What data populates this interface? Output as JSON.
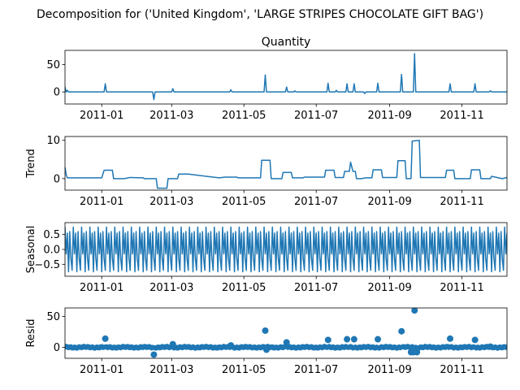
{
  "figure": {
    "suptitle": "Decomposition for ('United Kingdom', 'LARGE STRIPES CHOCOLATE GIFT BAG')"
  },
  "chart_data": [
    {
      "type": "line",
      "panel": "observed",
      "title": "Quantity",
      "ylabel": "",
      "ylim": [
        -22,
        76
      ],
      "yticks": [
        0,
        50
      ],
      "xlim": [
        "2010-12-01",
        "2011-12-09"
      ],
      "xticks": [
        "2011-01",
        "2011-03",
        "2011-05",
        "2011-07",
        "2011-09",
        "2011-11"
      ],
      "color": "#1f77b4",
      "baseline": 0,
      "spikes": [
        {
          "date": "2010-12-01",
          "value": 9
        },
        {
          "date": "2010-12-03",
          "value": 3
        },
        {
          "date": "2011-01-04",
          "value": 15
        },
        {
          "date": "2011-02-14",
          "value": -14
        },
        {
          "date": "2011-03-02",
          "value": 6
        },
        {
          "date": "2011-04-20",
          "value": 4
        },
        {
          "date": "2011-05-19",
          "value": 31
        },
        {
          "date": "2011-06-06",
          "value": 9
        },
        {
          "date": "2011-06-13",
          "value": 2
        },
        {
          "date": "2011-07-11",
          "value": 16
        },
        {
          "date": "2011-07-18",
          "value": 3
        },
        {
          "date": "2011-07-27",
          "value": 15
        },
        {
          "date": "2011-08-02",
          "value": 15
        },
        {
          "date": "2011-08-11",
          "value": -3
        },
        {
          "date": "2011-08-22",
          "value": 16
        },
        {
          "date": "2011-09-11",
          "value": 32
        },
        {
          "date": "2011-09-22",
          "value": 70
        },
        {
          "date": "2011-10-22",
          "value": 15
        },
        {
          "date": "2011-11-12",
          "value": 15
        },
        {
          "date": "2011-11-25",
          "value": 2
        }
      ]
    },
    {
      "type": "line",
      "panel": "trend",
      "title": "",
      "ylabel": "Trend",
      "ylim": [
        -3,
        11
      ],
      "yticks": [
        0,
        10
      ],
      "xlim": [
        "2010-12-01",
        "2011-12-09"
      ],
      "xticks": [
        "2011-01",
        "2011-03",
        "2011-05",
        "2011-07",
        "2011-09",
        "2011-11"
      ],
      "color": "#1f77b4",
      "x": [
        "2010-12-01",
        "2010-12-02",
        "2010-12-03",
        "2010-12-20",
        "2011-01-01",
        "2011-01-03",
        "2011-01-10",
        "2011-01-11",
        "2011-01-20",
        "2011-01-25",
        "2011-02-05",
        "2011-02-06",
        "2011-02-07",
        "2011-02-16",
        "2011-02-17",
        "2011-02-25",
        "2011-02-26",
        "2011-03-06",
        "2011-03-07",
        "2011-03-15",
        "2011-04-10",
        "2011-04-15",
        "2011-04-25",
        "2011-04-26",
        "2011-05-15",
        "2011-05-16",
        "2011-05-23",
        "2011-05-24",
        "2011-06-02",
        "2011-06-03",
        "2011-06-10",
        "2011-06-11",
        "2011-06-20",
        "2011-06-21",
        "2011-07-08",
        "2011-07-09",
        "2011-07-16",
        "2011-07-17",
        "2011-07-24",
        "2011-07-25",
        "2011-07-29",
        "2011-07-30",
        "2011-08-01",
        "2011-08-03",
        "2011-08-04",
        "2011-08-08",
        "2011-08-12",
        "2011-08-17",
        "2011-08-18",
        "2011-08-25",
        "2011-08-26",
        "2011-09-07",
        "2011-09-08",
        "2011-09-14",
        "2011-09-15",
        "2011-09-19",
        "2011-09-20",
        "2011-09-26",
        "2011-09-27",
        "2011-10-18",
        "2011-10-19",
        "2011-10-25",
        "2011-10-26",
        "2011-11-08",
        "2011-11-09",
        "2011-11-16",
        "2011-11-17",
        "2011-11-25",
        "2011-11-26",
        "2011-12-05",
        "2011-12-09"
      ],
      "values": [
        3,
        1,
        0.2,
        0.2,
        0.2,
        2.2,
        2.2,
        0,
        0,
        0.3,
        0.2,
        0,
        0,
        0,
        -2.5,
        -2.5,
        0,
        0,
        1.2,
        1.2,
        0.2,
        0.4,
        0.4,
        0.2,
        0.2,
        4.8,
        4.8,
        0,
        0,
        1.6,
        1.6,
        0.2,
        0.2,
        0.4,
        0.4,
        2.2,
        2.2,
        0.3,
        0.3,
        1.9,
        1.9,
        4.3,
        1.9,
        1.9,
        0,
        0,
        0.2,
        0.2,
        2.3,
        2.3,
        0.3,
        0.3,
        4.7,
        4.7,
        0,
        0,
        9.8,
        10,
        0.3,
        0.3,
        2.2,
        2.2,
        0,
        0,
        2.3,
        2.3,
        0,
        0,
        0.6,
        0,
        0.3
      ]
    },
    {
      "type": "line",
      "panel": "seasonal",
      "title": "",
      "ylabel": "Seasonal",
      "ylim": [
        -0.9,
        0.9
      ],
      "yticks": [
        -0.5,
        0.0,
        0.5
      ],
      "ytick_labels": [
        "−0.5",
        "0.0",
        "0.5"
      ],
      "xlim": [
        "2010-12-01",
        "2011-12-09"
      ],
      "xticks": [
        "2011-01",
        "2011-03",
        "2011-05",
        "2011-07",
        "2011-09",
        "2011-11"
      ],
      "color": "#1f77b4",
      "period_days": 7,
      "pattern": [
        0.75,
        -0.15,
        0.55,
        -0.75,
        0.6,
        -0.3,
        -0.7
      ]
    },
    {
      "type": "scatter",
      "panel": "resid",
      "title": "",
      "ylabel": "Resid",
      "ylim": [
        -18,
        64
      ],
      "yticks": [
        0,
        50
      ],
      "xlim": [
        "2010-12-01",
        "2011-12-09"
      ],
      "xticks": [
        "2011-01",
        "2011-03",
        "2011-05",
        "2011-07",
        "2011-09",
        "2011-11"
      ],
      "color": "#1f77b4",
      "baseline_noise": 1.5,
      "points": [
        {
          "date": "2011-01-04",
          "value": 14
        },
        {
          "date": "2011-02-14",
          "value": -12
        },
        {
          "date": "2011-03-02",
          "value": 5
        },
        {
          "date": "2011-04-20",
          "value": 3
        },
        {
          "date": "2011-05-19",
          "value": 27
        },
        {
          "date": "2011-05-20",
          "value": -4
        },
        {
          "date": "2011-06-06",
          "value": 8
        },
        {
          "date": "2011-07-11",
          "value": 12
        },
        {
          "date": "2011-07-27",
          "value": 13
        },
        {
          "date": "2011-08-02",
          "value": 13
        },
        {
          "date": "2011-08-22",
          "value": 13
        },
        {
          "date": "2011-09-11",
          "value": 26
        },
        {
          "date": "2011-09-19",
          "value": -8
        },
        {
          "date": "2011-09-21",
          "value": -8
        },
        {
          "date": "2011-09-22",
          "value": 60
        },
        {
          "date": "2011-09-24",
          "value": -8
        },
        {
          "date": "2011-10-22",
          "value": 14
        },
        {
          "date": "2011-11-12",
          "value": 12
        },
        {
          "date": "2011-11-25",
          "value": 1
        }
      ]
    }
  ]
}
